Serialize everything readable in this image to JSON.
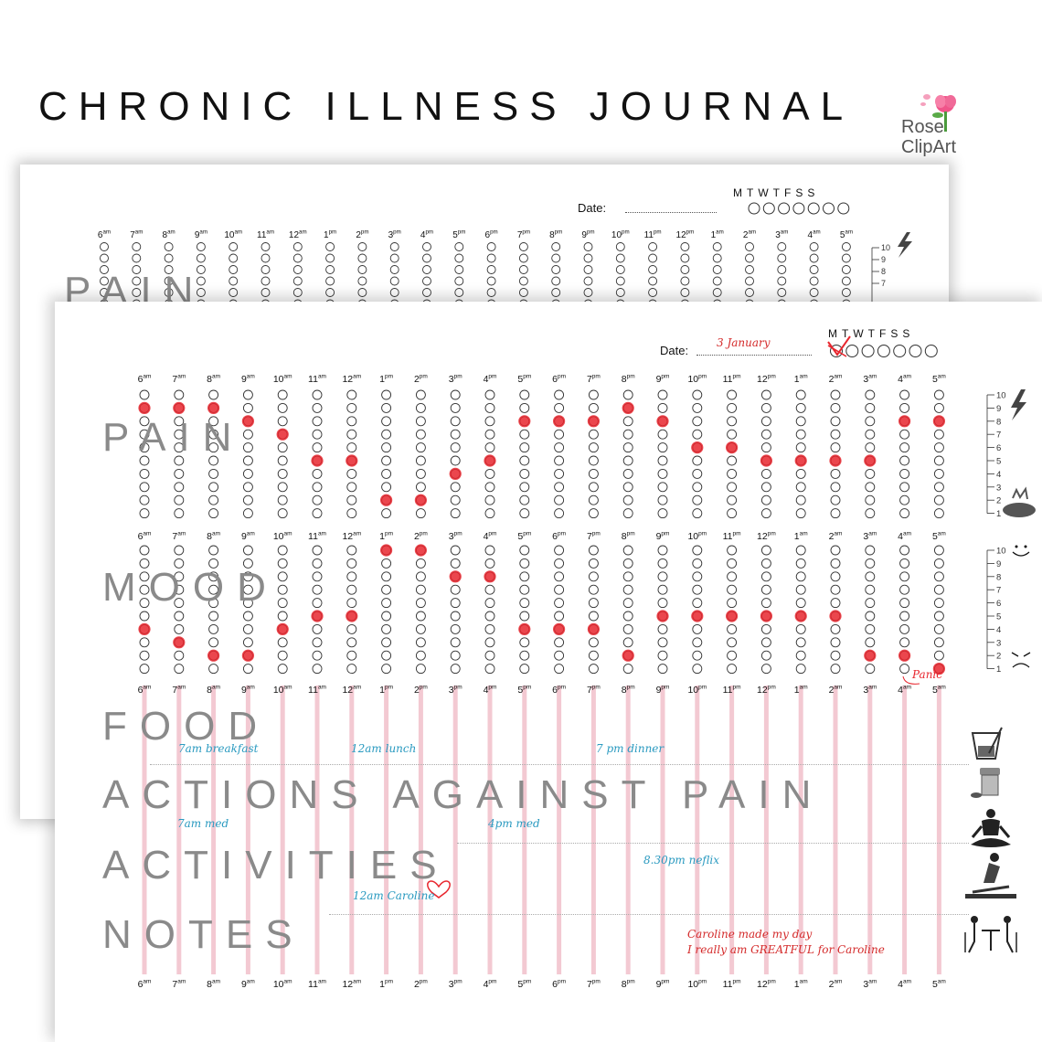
{
  "title": "CHRONIC ILLNESS JOURNAL",
  "logo": {
    "line1": "Rose",
    "line2": "ClipArt"
  },
  "date_label": "Date:",
  "date_value": "3 January",
  "weekdays": "MTWTFSS",
  "hours": [
    {
      "n": "6",
      "s": "am"
    },
    {
      "n": "7",
      "s": "am"
    },
    {
      "n": "8",
      "s": "am"
    },
    {
      "n": "9",
      "s": "am"
    },
    {
      "n": "10",
      "s": "am"
    },
    {
      "n": "11",
      "s": "am"
    },
    {
      "n": "12",
      "s": "am"
    },
    {
      "n": "1",
      "s": "pm"
    },
    {
      "n": "2",
      "s": "pm"
    },
    {
      "n": "3",
      "s": "pm"
    },
    {
      "n": "4",
      "s": "pm"
    },
    {
      "n": "5",
      "s": "pm"
    },
    {
      "n": "6",
      "s": "pm"
    },
    {
      "n": "7",
      "s": "pm"
    },
    {
      "n": "8",
      "s": "pm"
    },
    {
      "n": "9",
      "s": "pm"
    },
    {
      "n": "10",
      "s": "pm"
    },
    {
      "n": "11",
      "s": "pm"
    },
    {
      "n": "12",
      "s": "pm"
    },
    {
      "n": "1",
      "s": "am"
    },
    {
      "n": "2",
      "s": "am"
    },
    {
      "n": "3",
      "s": "am"
    },
    {
      "n": "4",
      "s": "am"
    },
    {
      "n": "5",
      "s": "am"
    }
  ],
  "scale": [
    "10",
    "9",
    "8",
    "7",
    "6",
    "5",
    "4",
    "3",
    "2",
    "1"
  ],
  "sections": {
    "pain": "PAIN",
    "mood": "MOOD",
    "food": "FOOD",
    "actions": "ACTIONS AGAINST PAIN",
    "activities": "ACTIVITIES",
    "notes": "NOTES"
  },
  "pain_levels": [
    9,
    9,
    9,
    8,
    7,
    5,
    5,
    2,
    2,
    4,
    5,
    8,
    8,
    8,
    9,
    8,
    6,
    6,
    5,
    5,
    5,
    5,
    8,
    8
  ],
  "mood_levels": [
    4,
    3,
    2,
    2,
    4,
    5,
    5,
    10,
    10,
    8,
    8,
    4,
    4,
    4,
    2,
    5,
    5,
    5,
    5,
    5,
    5,
    2,
    2,
    1
  ],
  "mood_annotation": "Panic",
  "entries": {
    "food": [
      "7am breakfast",
      "12am lunch",
      "7 pm dinner"
    ],
    "actions": [
      "7am med",
      "4pm med"
    ],
    "activities": [
      "8.30pm neflix",
      "12am  Caroline"
    ],
    "notes": [
      "Caroline made my day",
      "I really am GREATFUL for Caroline"
    ]
  },
  "colors": {
    "marker": "#e8262e",
    "guide": "#f3c9d2",
    "section_text": "#8a8a8a"
  },
  "icons": [
    "lightning-icon",
    "pain-face-icon",
    "smile-icon",
    "sad-face-icon",
    "drink-icon",
    "pill-bottle-icon",
    "meditation-icon",
    "exercise-icon",
    "friends-table-icon",
    "heart-icon",
    "check-mark-icon",
    "rose-logo-icon"
  ]
}
